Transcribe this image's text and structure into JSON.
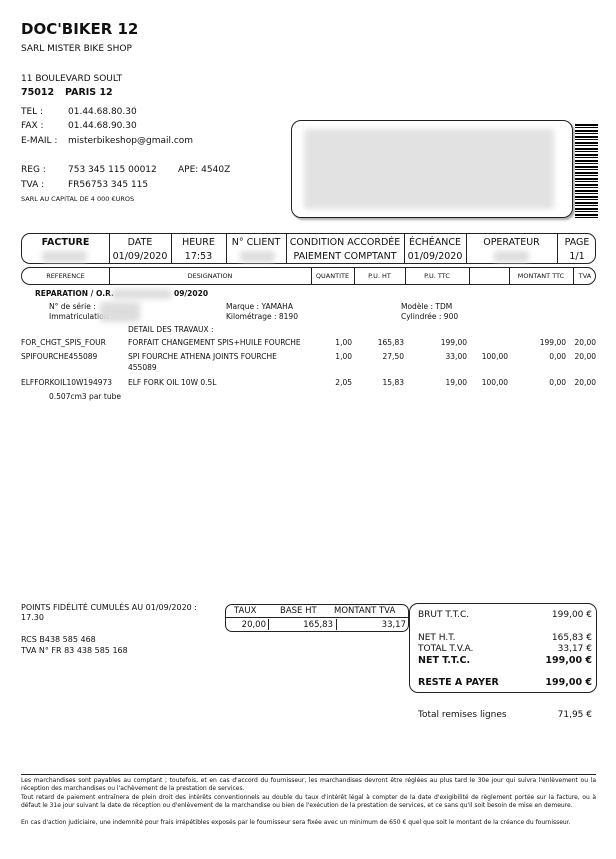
{
  "company": {
    "name": "DOC'BIKER 12",
    "legal_name": "SARL MISTER BIKE SHOP",
    "address": "11 BOULEVARD SOULT",
    "postcode": "75012",
    "city": "PARIS 12",
    "tel_label": "TEL :",
    "tel": "01.44.68.80.30",
    "fax_label": "FAX :",
    "fax": "01.44.68.90.30",
    "email_label": "E-MAIL :",
    "email": "misterbikeshop@gmail.com",
    "reg_label": "REG :",
    "reg": "753 345 115 00012",
    "ape": "APE: 4540Z",
    "tva_label": "TVA :",
    "tva": "FR56753 345 115",
    "capital": "SARL AU CAPITAL DE 4 000 €UROS"
  },
  "header": {
    "facture": "FACTURE",
    "date_label": "DATE",
    "date": "01/09/2020",
    "heure_label": "HEURE",
    "heure": "17:53",
    "client_label": "N° CLIENT",
    "condition_label": "CONDITION ACCORDÉE",
    "condition": "PAIEMENT COMPTANT",
    "echeance_label": "ÉCHÉANCE",
    "echeance": "01/09/2020",
    "operateur_label": "OPERATEUR",
    "page_label": "PAGE",
    "page": "1/1"
  },
  "columns": [
    "REFERENCE",
    "DESIGNATION",
    "QUANTITE",
    "P.U. HT",
    "P.U. TTC",
    "",
    "MONTANT TTC",
    "TVA"
  ],
  "repair": {
    "label": "REPARATION / O.R.",
    "or_suffix": "09/2020",
    "serie_label": "N° de série :",
    "immat_label": "Immatriculation :",
    "marque": "Marque : YAMAHA",
    "km": "Kilométrage : 8190",
    "modele": "Modèle : TDM",
    "cylindree": "Cylindrée : 900",
    "detail": "DETAIL DES TRAVAUX :"
  },
  "items": [
    {
      "ref": "FOR_CHGT_SPIS_FOUR",
      "designation": "FORFAIT CHANGEMENT SPIS+HUILE FOURCHE",
      "designation2": "",
      "qty": "1,00",
      "pu_ht": "165,83",
      "pu_ttc": "199,00",
      "remise": "",
      "montant": "199,00",
      "tva": "20,00"
    },
    {
      "ref": "SPIFOURCHE455089",
      "designation": "SPI FOURCHE ATHENA JOINTS FOURCHE",
      "designation2": "455089",
      "qty": "1,00",
      "pu_ht": "27,50",
      "pu_ttc": "33,00",
      "remise": "100,00",
      "montant": "0,00",
      "tva": "20,00"
    },
    {
      "ref": "ELFFORKOIL10W194973",
      "designation": "ELF FORK OIL 10W 0.5L",
      "designation2": "",
      "qty": "2,05",
      "pu_ht": "15,83",
      "pu_ttc": "19,00",
      "remise": "100,00",
      "montant": "0,00",
      "tva": "20,00"
    }
  ],
  "item_note": "0.507cm3 par tube",
  "loyalty": {
    "label": "POINTS  FIDÉLITÉ CUMULÉS AU 01/09/2020  :",
    "value": "17.30"
  },
  "rcs": "RCS B438 585 468",
  "tva_intra": "TVA  N° FR 83 438 585 168",
  "vat_table": {
    "headers": [
      "TAUX",
      "BASE HT",
      "MONTANT TVA"
    ],
    "row": [
      "20,00",
      "165,83",
      "33,17"
    ]
  },
  "totals": {
    "brut_label": "BRUT T.T.C.",
    "brut": "199,00 €",
    "net_ht_label": "NET H.T.",
    "net_ht": "165,83 €",
    "tva_label": "TOTAL T.V.A.",
    "tva": "33,17 €",
    "net_ttc_label": "NET T.T.C.",
    "net_ttc": "199,00 €",
    "reste_label": "RESTE A PAYER",
    "reste": "199,00 €"
  },
  "remises": {
    "label": "Total remises lignes",
    "value": "71,95 €"
  },
  "legal": [
    "Les marchandises sont payables au comptant ; toutefois, et en cas d'accord du fournisseur, les marchandises devront être réglées au plus tard le 30e jour qui suivra l'enlèvement ou la réception des marchandises ou l'achèvement de la prestation de services.",
    "Tout retard de paiement entraînera de plein droit des intérêts conventionnels au double du taux d'intérêt légal à compter de la date d'exigibilité de règlement portée sur la facture, ou à défaut le 31e jour suivant la date de réception ou d'enlèvement de la marchandise ou bien de l'exécution de la prestation de services, et ce sans qu'il soit besoin de mise en demeure.",
    "En cas d'action judiciaire, une indemnité pour frais irrépétibles exposés par le fournisseur sera fixée avec un minimum de 650 € quel que soit le montant de la créance du fournisseur."
  ]
}
